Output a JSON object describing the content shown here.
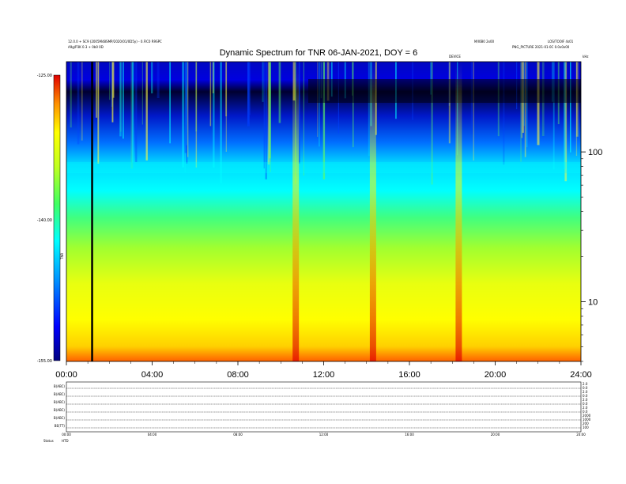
{
  "header": {
    "left_line1": "12.0.0 + SC9 (2005M48SMP/2020/01/0D5y) - 0.FIC0 R9SPC",
    "left_line2": "A9g/P3K 0.3 + 0b0 0D",
    "center_small": "M/I0B0 2x00",
    "right_line1": "LOS/TOOlF 4s01",
    "right_line2": "PNG_PICTURE 2021-01-0C 0.0x0x00",
    "event_label": "DEVICE"
  },
  "chart_data": {
    "type": "heatmap",
    "title": "Dynamic Spectrum for TNR 06-JAN-2021, DOY = 6",
    "x_ticks": [
      "00:00",
      "04:00",
      "08:00",
      "12:00",
      "16:00",
      "20:00",
      "24:00"
    ],
    "x_range_hours": [
      0,
      24
    ],
    "y_scale": "log",
    "y_unit": "kHz",
    "y_ticks": [
      "100",
      "10"
    ],
    "y_tick_values": [
      100,
      10
    ],
    "y_range_khz": [
      4,
      400
    ],
    "colorbar": {
      "ticks": [
        "-125.00",
        "-140.00",
        "-155.00"
      ],
      "tick_values": [
        -125,
        -140,
        -155
      ],
      "range": [
        -155,
        -125
      ],
      "label": "TNR",
      "colors": [
        "#000000",
        "#0000c8",
        "#0060ff",
        "#00e8ff",
        "#40ff60",
        "#b8ff20",
        "#ffff00",
        "#ffb000",
        "#ff3000",
        "#c00000"
      ]
    },
    "marker_hour": 1.2,
    "features": [
      {
        "kind": "vertical_burst",
        "hour": 10.7
      },
      {
        "kind": "vertical_burst",
        "hour": 14.3
      },
      {
        "kind": "vertical_burst",
        "hour": 18.3
      }
    ]
  },
  "lower_panels": {
    "labels": [
      "B(ABC)",
      "B(ABC)",
      "B(ABC)",
      "B(ABC)",
      "B(ABC)",
      "BE(TT)"
    ],
    "right_scales": [
      [
        "2.0",
        "0.0"
      ],
      [
        "2.0",
        "0.0"
      ],
      [
        "2.0",
        "0.0"
      ],
      [
        "2.0",
        "0.0"
      ],
      [
        "2000",
        "1000"
      ],
      [
        "200",
        "100"
      ]
    ],
    "x_ticks": [
      "00:00",
      "04:00",
      "08:00",
      "12:00",
      "16:00",
      "20:00",
      "24:00"
    ],
    "footer_left": "Status",
    "footer_code": "HTD"
  }
}
